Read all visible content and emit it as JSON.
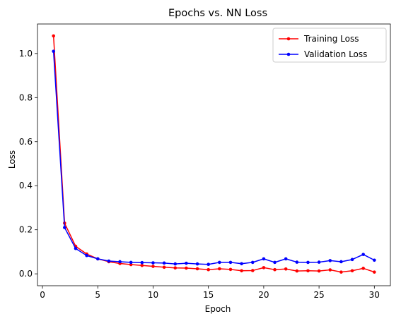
{
  "chart_data": {
    "type": "line",
    "title": "Epochs vs. NN Loss",
    "xlabel": "Epoch",
    "ylabel": "Loss",
    "xlim": [
      -0.45,
      31.45
    ],
    "ylim": [
      -0.054,
      1.134
    ],
    "xticks": [
      0,
      5,
      10,
      15,
      20,
      25,
      30
    ],
    "yticks": [
      0.0,
      0.2,
      0.4,
      0.6,
      0.8,
      1.0
    ],
    "grid": false,
    "legend_position": "top-right",
    "x": [
      1,
      2,
      3,
      4,
      5,
      6,
      7,
      8,
      9,
      10,
      11,
      12,
      13,
      14,
      15,
      16,
      17,
      18,
      19,
      20,
      21,
      22,
      23,
      24,
      25,
      26,
      27,
      28,
      29,
      30
    ],
    "series": [
      {
        "name": "Training Loss",
        "color": "#ff0000",
        "values": [
          1.08,
          0.23,
          0.125,
          0.09,
          0.068,
          0.055,
          0.047,
          0.042,
          0.038,
          0.034,
          0.03,
          0.027,
          0.026,
          0.023,
          0.019,
          0.023,
          0.02,
          0.014,
          0.015,
          0.028,
          0.019,
          0.022,
          0.013,
          0.014,
          0.013,
          0.018,
          0.008,
          0.014,
          0.025,
          0.008
        ]
      },
      {
        "name": "Validation Loss",
        "color": "#0000ff",
        "values": [
          1.01,
          0.21,
          0.115,
          0.083,
          0.068,
          0.058,
          0.055,
          0.052,
          0.051,
          0.05,
          0.049,
          0.045,
          0.048,
          0.045,
          0.043,
          0.052,
          0.052,
          0.046,
          0.052,
          0.068,
          0.052,
          0.068,
          0.053,
          0.052,
          0.053,
          0.06,
          0.055,
          0.065,
          0.088,
          0.062
        ]
      }
    ]
  }
}
